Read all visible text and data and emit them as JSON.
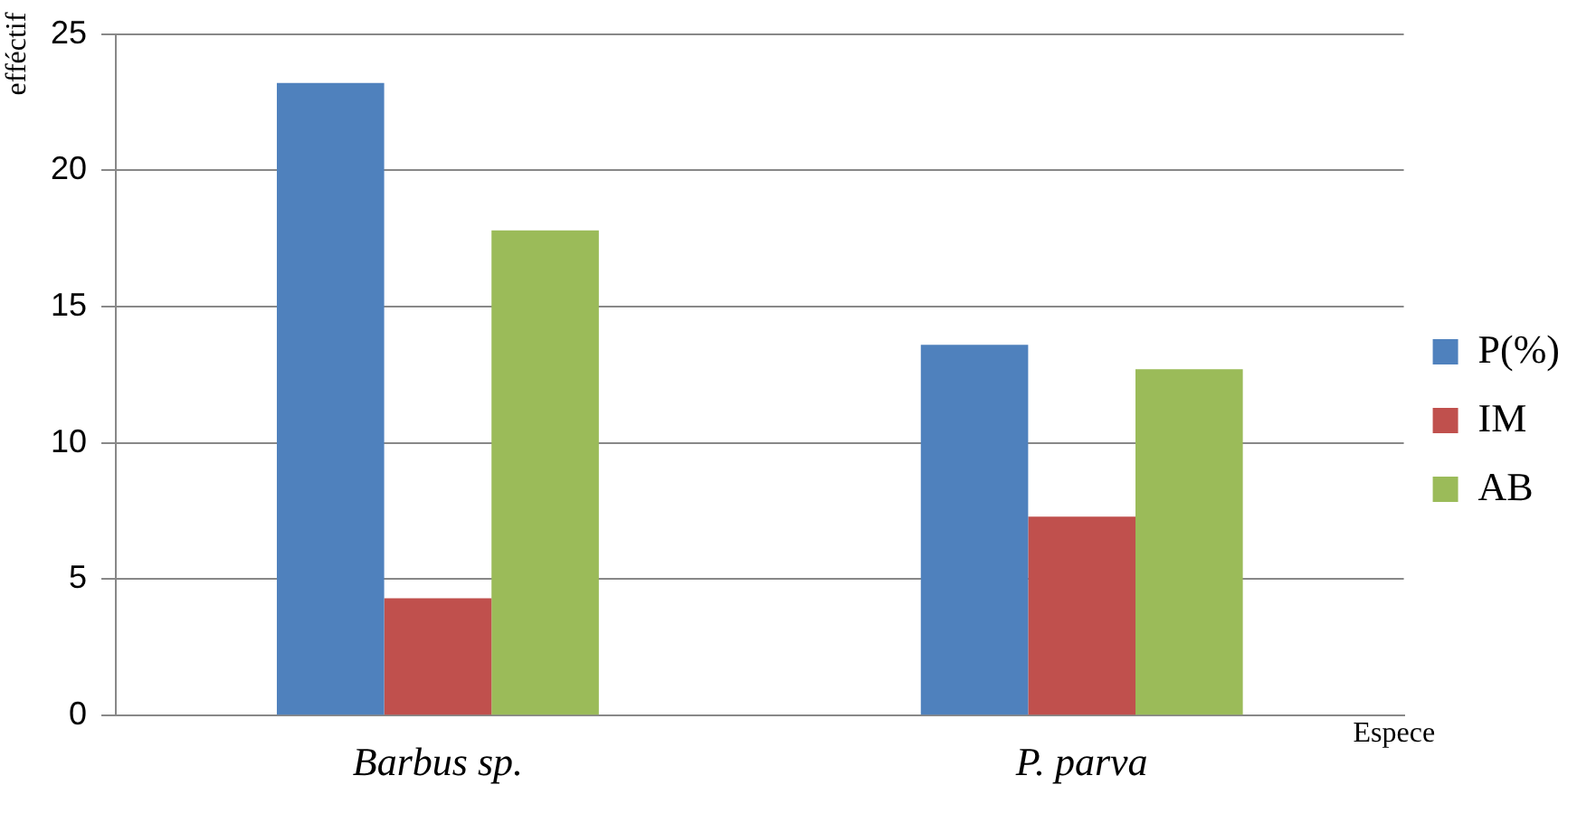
{
  "chart_data": {
    "type": "bar",
    "xlabel": "Espece",
    "ylabel": "efféctif",
    "categories": [
      "Barbus sp.",
      "P. parva"
    ],
    "series": [
      {
        "name": "P(%)",
        "color": "#4f81bd",
        "values": [
          23.2,
          13.6
        ]
      },
      {
        "name": "IM",
        "color": "#c0504d",
        "values": [
          4.3,
          7.3
        ]
      },
      {
        "name": "AB",
        "color": "#9bbb59",
        "values": [
          17.8,
          12.7
        ]
      }
    ],
    "ylim": [
      0,
      25
    ],
    "yticks": [
      0,
      5,
      10,
      15,
      20,
      25
    ],
    "grid": "y",
    "legend": "right"
  }
}
